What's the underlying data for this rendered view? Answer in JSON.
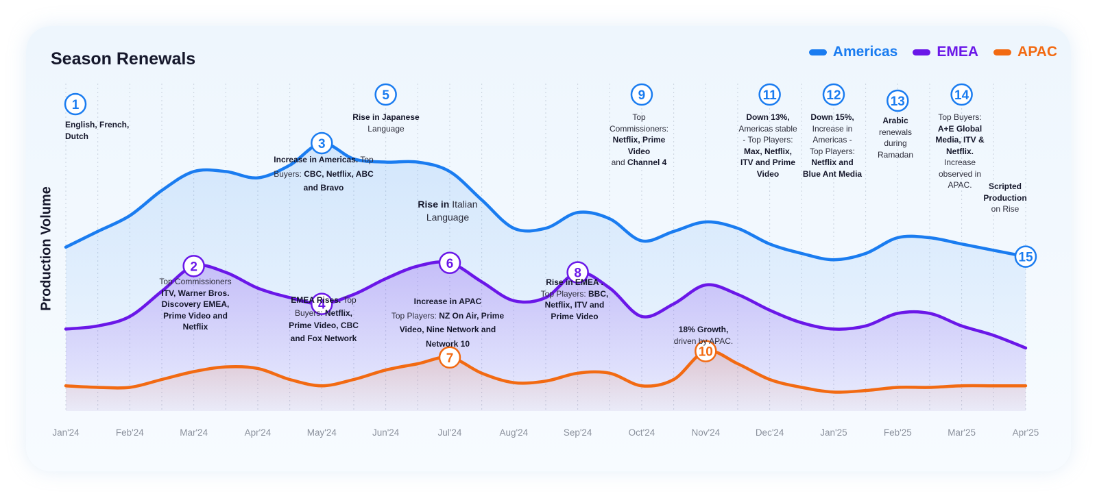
{
  "chart_data": {
    "type": "area",
    "title": "Season Renewals",
    "xlabel": "",
    "ylabel": "Production Volume",
    "grid": true,
    "legend_position": "top-right",
    "categories": [
      "Jan'24",
      "Feb'24",
      "Mar'24",
      "Apr'24",
      "May'24",
      "Jun'24",
      "Jul'24",
      "Aug'24",
      "Sep'24",
      "Oct'24",
      "Nov'24",
      "Dec'24",
      "Jan'25",
      "Feb'25",
      "Mar'25",
      "Apr'25"
    ],
    "series": [
      {
        "name": "Americas",
        "color": "#1a7cf0",
        "values": [
          [
            0,
            52
          ],
          [
            0.5,
            57
          ],
          [
            1,
            62
          ],
          [
            1.5,
            70
          ],
          [
            2,
            76
          ],
          [
            2.5,
            76
          ],
          [
            3,
            74
          ],
          [
            3.5,
            78
          ],
          [
            4,
            85
          ],
          [
            4.5,
            80
          ],
          [
            5,
            79
          ],
          [
            5.5,
            79
          ],
          [
            6,
            76
          ],
          [
            6.5,
            67
          ],
          [
            7,
            58
          ],
          [
            7.5,
            58
          ],
          [
            8,
            63
          ],
          [
            8.5,
            61
          ],
          [
            9,
            54
          ],
          [
            9.5,
            57
          ],
          [
            10,
            60
          ],
          [
            10.5,
            58
          ],
          [
            11,
            53
          ],
          [
            11.5,
            50
          ],
          [
            12,
            48
          ],
          [
            12.5,
            50
          ],
          [
            13,
            55
          ],
          [
            13.5,
            55
          ],
          [
            14,
            53
          ],
          [
            14.5,
            51
          ],
          [
            15,
            49
          ]
        ]
      },
      {
        "name": "EMEA",
        "color": "#6a17e8",
        "values": [
          [
            0,
            26
          ],
          [
            0.5,
            27
          ],
          [
            1,
            30
          ],
          [
            1.5,
            38
          ],
          [
            2,
            46
          ],
          [
            2.5,
            44
          ],
          [
            3,
            39
          ],
          [
            3.5,
            36
          ],
          [
            4,
            34
          ],
          [
            4.5,
            37
          ],
          [
            5,
            42
          ],
          [
            5.5,
            46
          ],
          [
            6,
            47
          ],
          [
            6.5,
            41
          ],
          [
            7,
            35
          ],
          [
            7.5,
            36
          ],
          [
            8,
            44
          ],
          [
            8.5,
            39
          ],
          [
            9,
            30
          ],
          [
            9.5,
            34
          ],
          [
            10,
            40
          ],
          [
            10.5,
            37
          ],
          [
            11,
            32
          ],
          [
            11.5,
            28
          ],
          [
            12,
            26
          ],
          [
            12.5,
            27
          ],
          [
            13,
            31
          ],
          [
            13.5,
            31
          ],
          [
            14,
            27
          ],
          [
            14.5,
            24
          ],
          [
            15,
            20
          ]
        ]
      },
      {
        "name": "APAC",
        "color": "#f26a12",
        "values": [
          [
            0,
            8
          ],
          [
            0.5,
            7.5
          ],
          [
            1,
            7.5
          ],
          [
            1.5,
            10
          ],
          [
            2,
            12.5
          ],
          [
            2.5,
            14
          ],
          [
            3,
            13.5
          ],
          [
            3.5,
            10
          ],
          [
            4,
            8
          ],
          [
            4.5,
            10
          ],
          [
            5,
            13
          ],
          [
            5.5,
            15
          ],
          [
            6,
            17
          ],
          [
            6.5,
            12
          ],
          [
            7,
            9
          ],
          [
            7.5,
            9.5
          ],
          [
            8,
            12
          ],
          [
            8.5,
            12
          ],
          [
            9,
            8
          ],
          [
            9.5,
            10
          ],
          [
            10,
            19
          ],
          [
            10.5,
            15
          ],
          [
            11,
            10
          ],
          [
            11.5,
            7.5
          ],
          [
            12,
            6
          ],
          [
            12.5,
            6.5
          ],
          [
            13,
            7.5
          ],
          [
            13.5,
            7.5
          ],
          [
            14,
            8
          ],
          [
            14.5,
            8
          ],
          [
            15,
            8
          ]
        ]
      }
    ],
    "ylim": [
      0,
      100
    ]
  },
  "markers": [
    {
      "number": "1",
      "series": "Americas",
      "x": 0.15,
      "color": "#1a7cf0"
    },
    {
      "number": "2",
      "series": "EMEA",
      "x": 2,
      "color": "#6a17e8"
    },
    {
      "number": "3",
      "series": "Americas",
      "x": 4,
      "color": "#1a7cf0"
    },
    {
      "number": "4",
      "series": "EMEA",
      "x": 4,
      "color": "#6a17e8"
    },
    {
      "number": "5",
      "series": "Americas",
      "x": 5,
      "color": "#1a7cf0"
    },
    {
      "number": "6",
      "series": "EMEA",
      "x": 6,
      "color": "#6a17e8"
    },
    {
      "number": "7",
      "series": "APAC",
      "x": 6,
      "color": "#f26a12"
    },
    {
      "number": "8",
      "series": "EMEA",
      "x": 8,
      "color": "#6a17e8"
    },
    {
      "number": "9",
      "series": "Americas",
      "x": 9,
      "color": "#1a7cf0"
    },
    {
      "number": "10",
      "series": "APAC",
      "x": 10,
      "color": "#f26a12"
    },
    {
      "number": "11",
      "series": "Americas",
      "x": 11,
      "color": "#1a7cf0"
    },
    {
      "number": "12",
      "series": "Americas",
      "x": 12,
      "color": "#1a7cf0"
    },
    {
      "number": "13",
      "series": "Americas",
      "x": 13,
      "color": "#1a7cf0"
    },
    {
      "number": "14",
      "series": "Americas",
      "x": 14,
      "color": "#1a7cf0"
    },
    {
      "number": "15",
      "series": "Americas",
      "x": 15,
      "color": "#1a7cf0"
    }
  ],
  "annotations": {
    "a1": {
      "l1": "English, French,",
      "l2": "Dutch"
    },
    "a2": {
      "l1": "Top Commissioners",
      "l2": "ITV, Warner Bros.",
      "l3": "Discovery EMEA,",
      "l4": "Prime Video and",
      "l5": "Netflix"
    },
    "a3": {
      "l1b": "Increase in Americas.",
      "l1": " Top",
      "l2": "Buyers: ",
      "l2b": "CBC, Netflix, ABC",
      "l3": "and Bravo"
    },
    "a4": {
      "l1b": "EMEA Rises.",
      "l1": " Top",
      "l2": "Buyers: ",
      "l2b": "Netflix,",
      "l3": "Prime Video, CBC",
      "l4": "and Fox Network"
    },
    "a5": {
      "l1": "Rise in Japanese",
      "l2": "Language"
    },
    "a6": {
      "l1b": "Rise in",
      "l1": " Italian",
      "l2": "Language"
    },
    "a7": {
      "l1": "Increase in APAC",
      "l2": "Top Players: ",
      "l2b": "NZ On Air, Prime",
      "l3": "Video, Nine Network and",
      "l4": "Network 10"
    },
    "a8": {
      "l1": "Rise in EMEA .",
      "l2": "Top Players: ",
      "l2b": "BBC,",
      "l3": "Netflix, ITV and",
      "l4": "Prime Video"
    },
    "a9": {
      "l1": "Top",
      "l2": "Commissioners:",
      "l3": "Netflix, Prime",
      "l4": "Video",
      "l5": "and ",
      "l5b": "Channel 4"
    },
    "a10": {
      "l1": "18% Growth,",
      "l2": "driven by APAC."
    },
    "a11": {
      "l1b": "Down 13%,",
      "l2": "Americas stable",
      "l3": " - Top Players:",
      "l4": "Max, Netflix,",
      "l5": "ITV and Prime",
      "l6": "Video"
    },
    "a12": {
      "l1b": "Down 15%,",
      "l2": "Increase in",
      "l3": "Americas -",
      "l4": "Top Players:",
      "l5": "Netflix and",
      "l6": "Blue Ant Media"
    },
    "a13": {
      "l1b": "Arabic",
      "l2": "renewals",
      "l3": "during",
      "l4": "Ramadan"
    },
    "a14": {
      "l1": "Top Buyers:",
      "l2": "A+E Global",
      "l3": "Media, ITV &",
      "l4": "Netflix.",
      "l5": "Increase",
      "l6": "observed in",
      "l7": "APAC."
    },
    "a15": {
      "l1": "Scripted",
      "l2": "Production",
      "l3": "on Rise"
    }
  }
}
